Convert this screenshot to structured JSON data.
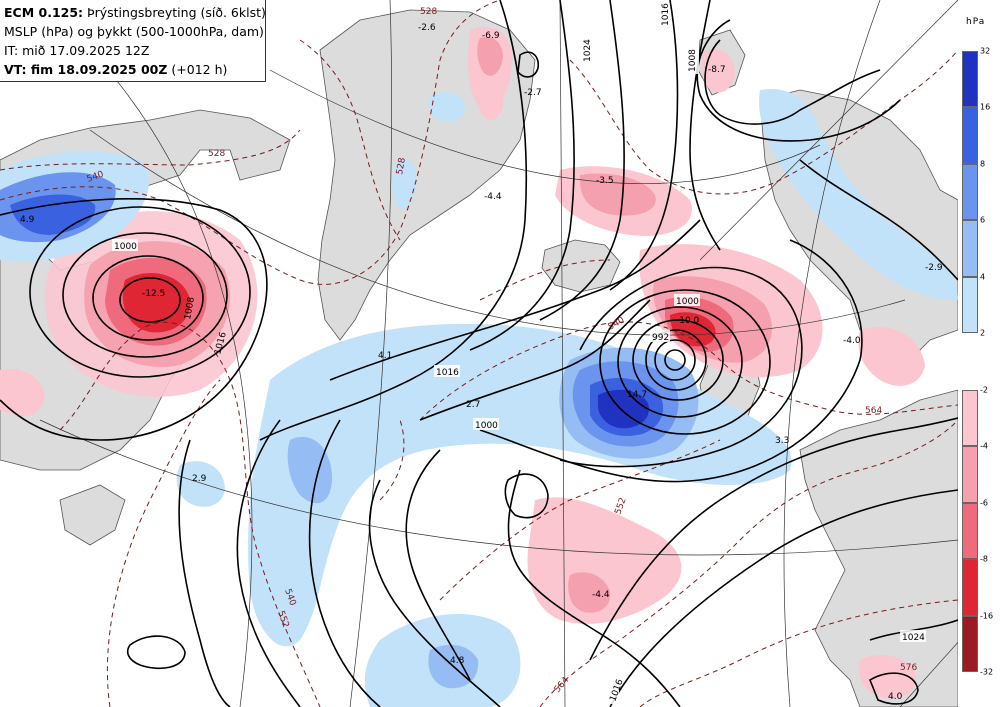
{
  "header": {
    "model": "ECM 0.125:",
    "product": "Þrýstingsbreyting (síð. 6klst)",
    "line2": "MSLP (hPa) og þykkt (500-1000hPa, dam)",
    "line3": "IT: mið 17.09.2025 12Z",
    "line4_label": "VT: fim 18.09.2025 00Z",
    "line4_suffix": "(+012 h)"
  },
  "legend": {
    "unit": "hPa",
    "rise_ticks": [
      "32",
      "16",
      "8",
      "6",
      "4",
      "2"
    ],
    "fall_ticks": [
      "-2",
      "-4",
      "-6",
      "-8",
      "-16",
      "-32"
    ],
    "rise_colors": [
      "#2033c0",
      "#3a62e0",
      "#6b94ee",
      "#96bcf4",
      "#c2e2fa"
    ],
    "fall_colors": [
      "#fbc6d0",
      "#f5a0ae",
      "#ee6a7c",
      "#de2634",
      "#9c1a24"
    ]
  },
  "colors": {
    "land": "#dcdcdc",
    "land_edge": "#555555",
    "isobar": "#000000",
    "thickness": "#7a1c1c"
  },
  "isobar_labels": [
    "1000",
    "1016",
    "992",
    "1024",
    "1008"
  ],
  "thickness_labels": [
    "528",
    "540",
    "552",
    "564",
    "576"
  ],
  "change_labels": [
    "-12.5",
    "4.9",
    "-6.9",
    "-2.7",
    "-8.7",
    "-3.5",
    "4.1",
    "2.7",
    "-10.0",
    "14.7",
    "2.9",
    "-4.4",
    "4.8",
    "3.3",
    "-4.0",
    "-2.9",
    "4.0",
    "-2.6",
    "-4.4"
  ]
}
